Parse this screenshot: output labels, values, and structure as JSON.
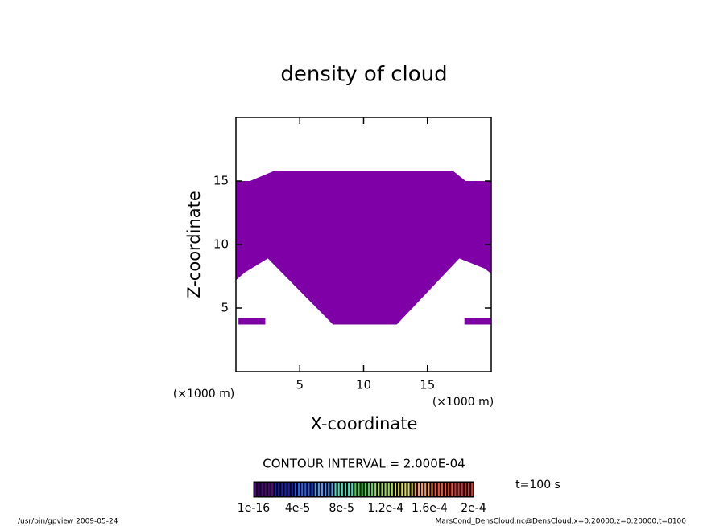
{
  "chart_data": {
    "type": "contour",
    "title": "density of cloud",
    "x_label": "X-coordinate",
    "y_label": "Z-coordinate",
    "x_unit": "(×1000 m)",
    "y_unit": "(×1000 m)",
    "xlim": [
      0,
      20
    ],
    "ylim": [
      0,
      20
    ],
    "xticks": [
      5,
      10,
      15
    ],
    "yticks": [
      5,
      10,
      15
    ],
    "regions": [
      {
        "color": "#8000a8",
        "x": [
          0,
          1.1,
          3.0,
          17.0,
          18.0,
          20,
          20,
          19.5,
          17.5,
          12.6,
          7.6,
          2.5,
          0.7,
          0
        ],
        "y": [
          15,
          15,
          15.8,
          15.8,
          15,
          15,
          7.7,
          8.1,
          8.9,
          3.7,
          3.7,
          8.9,
          7.8,
          7.2
        ]
      },
      {
        "color": "#8000a8",
        "x": [
          0.2,
          2.3,
          2.3,
          0.2
        ],
        "y": [
          3.7,
          3.7,
          4.2,
          4.2
        ]
      },
      {
        "color": "#8000a8",
        "x": [
          17.9,
          20,
          20,
          17.9
        ],
        "y": [
          3.7,
          3.7,
          4.2,
          4.2
        ]
      }
    ],
    "contour_interval": "CONTOUR INTERVAL = 2.000E-04",
    "time_label": "t=100 s",
    "colorbar": {
      "range": [
        0,
        0.0002
      ],
      "ticks": [
        {
          "value": 1e-16,
          "label": "1e-16"
        },
        {
          "value": 4e-05,
          "label": "4e-5"
        },
        {
          "value": 8e-05,
          "label": "8e-5"
        },
        {
          "value": 0.00012,
          "label": "1.2e-4"
        },
        {
          "value": 0.00016,
          "label": "1.6e-4"
        },
        {
          "value": 0.0002,
          "label": "2e-4"
        }
      ],
      "colors": [
        "#5a0090",
        "#2020c0",
        "#2060ff",
        "#40a0ff",
        "#40e0c0",
        "#40e040",
        "#a0e040",
        "#e0e040",
        "#ffa040",
        "#ff5030",
        "#e03030"
      ]
    },
    "footer_left": "/usr/bin/gpview  2009-05-24",
    "footer_right": "MarsCond_DensCloud.nc@DensCloud,x=0:20000,z=0:20000,t=0100"
  }
}
